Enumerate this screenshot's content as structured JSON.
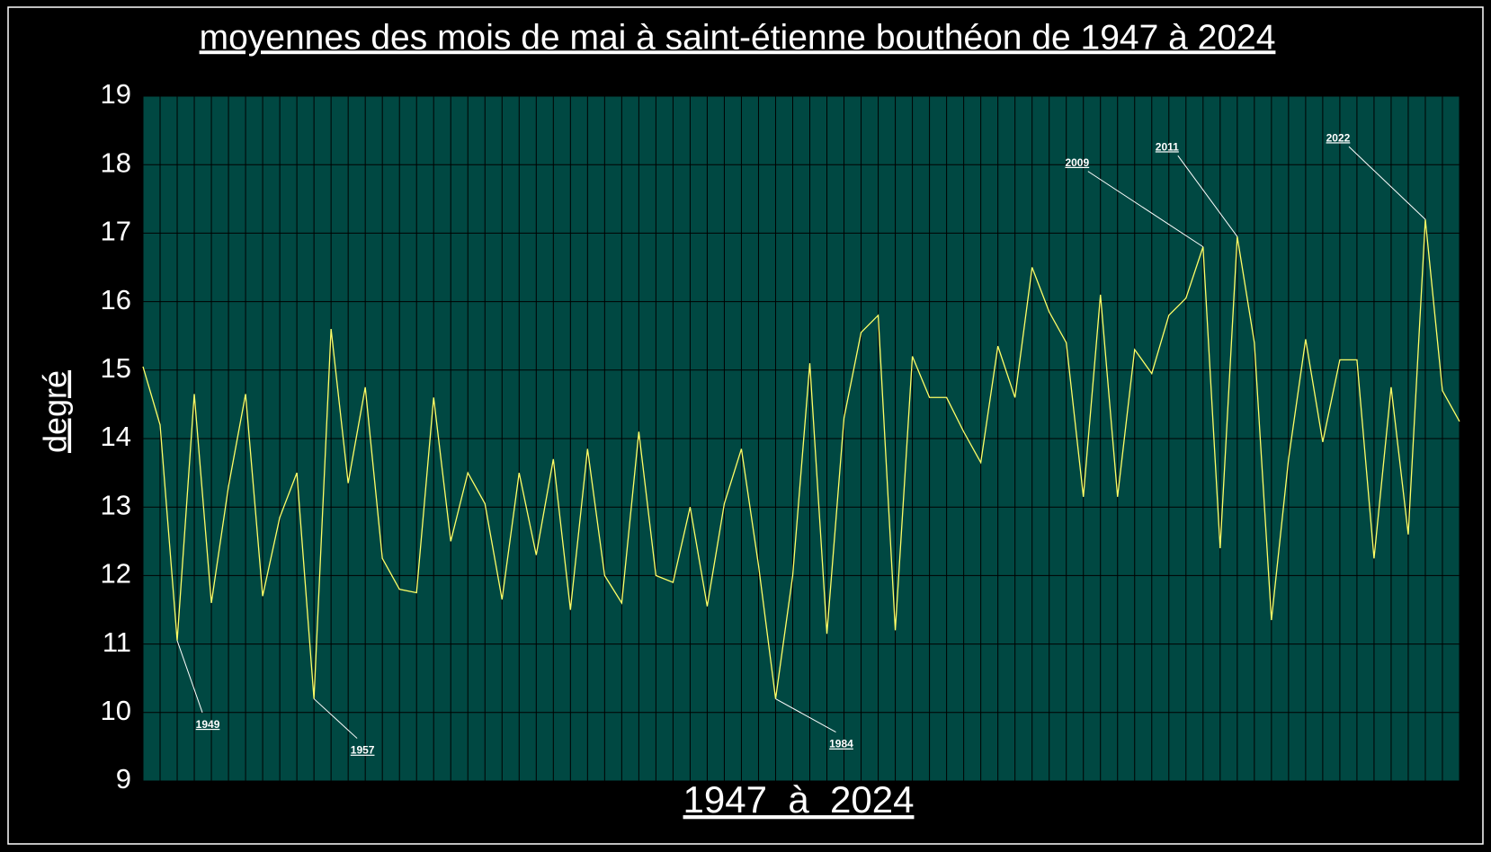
{
  "chart_data": {
    "type": "line",
    "title": "moyennes des mois de mai à saint-étienne bouthéon de 1947 à 2024",
    "y_label": "degré",
    "x_label": "1947  à  2024",
    "categories": [
      null,
      null,
      "1949",
      null,
      null,
      null,
      null,
      null,
      null,
      null,
      "1957",
      null,
      null,
      null,
      null,
      null,
      null,
      null,
      null,
      null,
      null,
      null,
      null,
      null,
      null,
      null,
      null,
      null,
      null,
      null,
      null,
      null,
      null,
      null,
      null,
      null,
      null,
      "1984",
      null,
      null,
      null,
      null,
      null,
      null,
      null,
      null,
      null,
      null,
      null,
      null,
      null,
      null,
      null,
      null,
      null,
      null,
      null,
      null,
      null,
      null,
      null,
      null,
      "2009",
      null,
      "2011",
      null,
      null,
      null,
      null,
      null,
      null,
      null,
      null,
      null,
      null,
      "2022",
      null,
      null
    ],
    "values": [
      15.05,
      14.2,
      11.05,
      14.65,
      11.6,
      13.3,
      14.65,
      11.7,
      12.85,
      13.5,
      10.2,
      15.6,
      13.35,
      14.75,
      12.25,
      11.8,
      11.75,
      14.6,
      12.5,
      13.5,
      13.05,
      11.65,
      13.5,
      12.3,
      13.7,
      11.5,
      13.85,
      12.0,
      11.6,
      14.1,
      12.0,
      11.9,
      13.0,
      11.55,
      13.05,
      13.85,
      12.15,
      10.2,
      12.0,
      15.1,
      11.15,
      14.3,
      15.55,
      15.8,
      11.2,
      15.2,
      14.6,
      14.6,
      14.1,
      13.65,
      15.35,
      14.6,
      16.5,
      15.85,
      15.4,
      13.15,
      16.1,
      13.15,
      15.3,
      14.95,
      15.8,
      16.05,
      16.8,
      12.4,
      16.95,
      15.4,
      11.35,
      13.7,
      15.45,
      13.95,
      15.15,
      15.15,
      12.25,
      14.75,
      12.6,
      17.2,
      14.7,
      14.25
    ],
    "color": "#ffff66",
    "ylim": [
      9,
      19
    ],
    "yticks": [
      9,
      10,
      11,
      12,
      13,
      14,
      15,
      16,
      17,
      18,
      19
    ],
    "grid": true
  }
}
